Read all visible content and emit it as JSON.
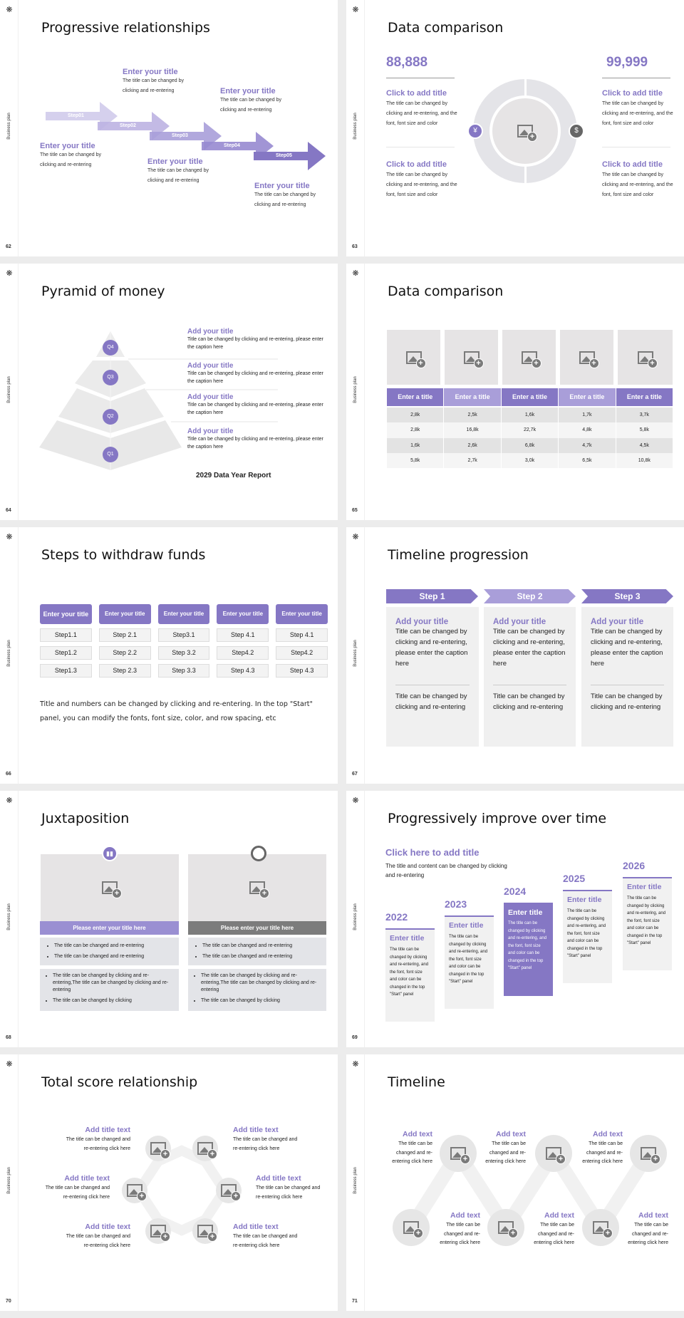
{
  "common": {
    "side_label": "Business plan",
    "logo_glyph": "❋"
  },
  "colors": {
    "accent": "#8577c4",
    "light_accent": "#a99ed9",
    "gray": "#7a7a7a",
    "panel": "#f0f0f0"
  },
  "s62": {
    "page": "62",
    "title": "Progressive relationships",
    "steps": [
      "Step01",
      "Step02",
      "Step03",
      "Step04",
      "Step05"
    ],
    "items": [
      {
        "title": "Enter your title",
        "body": "The title can be changed by clicking and re-entering"
      },
      {
        "title": "Enter your title",
        "body": "The title can be changed by clicking and re-entering"
      },
      {
        "title": "Enter your title",
        "body": "The title can be changed by clicking and re-entering"
      },
      {
        "title": "Enter your title",
        "body": "The title can be changed by clicking and re-entering"
      },
      {
        "title": "Enter your title",
        "body": "The title can be changed by clicking and re-entering"
      }
    ]
  },
  "s63": {
    "page": "63",
    "title": "Data comparison",
    "left_value": "88,888",
    "right_value": "99,999",
    "blocks": [
      {
        "title": "Click to add title",
        "body": "The title can be changed by clicking and re-entering, and the font, font size and color"
      },
      {
        "title": "Click to add title",
        "body": "The title can be changed by clicking and re-entering, and the font, font size and color"
      },
      {
        "title": "Click to add title",
        "body": "The title can be changed by clicking and re-entering, and the font, font size and color"
      },
      {
        "title": "Click to add title",
        "body": "The title can be changed by clicking and re-entering, and the font, font size and color"
      }
    ]
  },
  "s64": {
    "page": "64",
    "title": "Pyramid of money",
    "levels": [
      "Q4",
      "Q3",
      "Q2",
      "Q1"
    ],
    "items": [
      {
        "title": "Add your title",
        "body": "Title can be changed by clicking and re-entering, please enter the caption here"
      },
      {
        "title": "Add your title",
        "body": "Title can be changed by clicking and re-entering, please enter the caption here"
      },
      {
        "title": "Add your title",
        "body": "Title can be changed by clicking and re-entering, please enter the caption here"
      },
      {
        "title": "Add your title",
        "body": "Title can be changed by clicking and re-entering, please enter the caption here"
      }
    ],
    "report": "2029 Data Year Report"
  },
  "s65": {
    "page": "65",
    "title": "Data comparison",
    "headers": [
      "Enter a title",
      "Enter a title",
      "Enter a title",
      "Enter a title",
      "Enter a title"
    ],
    "rows": [
      [
        "2,8k",
        "2,5k",
        "1,6k",
        "1,7k",
        "3,7k"
      ],
      [
        "2,8k",
        "16,8k",
        "22,7k",
        "4,8k",
        "5,8k"
      ],
      [
        "1,6k",
        "2,6k",
        "6,8k",
        "4,7k",
        "4,5k"
      ],
      [
        "5,8k",
        "2,7k",
        "3,0k",
        "6,5k",
        "10,8k"
      ]
    ]
  },
  "s66": {
    "page": "66",
    "title": "Steps to withdraw funds",
    "columns": [
      {
        "header": "Enter your title",
        "steps": [
          "Step1.1",
          "Step1.2",
          "Step1.3"
        ]
      },
      {
        "header": "Enter your title",
        "steps": [
          "Step 2.1",
          "Step 2.2",
          "Step 2.3"
        ]
      },
      {
        "header": "Enter your title",
        "steps": [
          "Step3.1",
          "Step 3.2",
          "Step 3.3"
        ]
      },
      {
        "header": "Enter your title",
        "steps": [
          "Step 4.1",
          "Step4.2",
          "Step 4.3"
        ]
      },
      {
        "header": "Enter your title",
        "steps": [
          "Step 4.1",
          "Step4.2",
          "Step 4.3"
        ]
      }
    ],
    "note": "Title and numbers can be changed by clicking and re-entering. In the top \"Start\" panel, you can modify the fonts, font size, color, and row spacing, etc"
  },
  "s67": {
    "page": "67",
    "title": "Timeline progression",
    "steps": [
      {
        "label": "Step 1",
        "title": "Add your title",
        "body": "Title can be changed by clicking and re-entering, please enter the caption here",
        "body2": "Title can be changed by clicking and re-entering"
      },
      {
        "label": "Step 2",
        "title": "Add your title",
        "body": "Title can be changed by clicking and re-entering, please enter the caption here",
        "body2": "Title can be changed by clicking and re-entering"
      },
      {
        "label": "Step 3",
        "title": "Add your title",
        "body": "Title can be changed by clicking and re-entering, please enter the caption here",
        "body2": "Title can be changed by clicking and re-entering"
      }
    ]
  },
  "s68": {
    "page": "68",
    "title": "Juxtaposition",
    "panels": [
      {
        "icon": "bar-chart-icon",
        "heading": "Please enter your title here",
        "bullets_a": [
          "The title can be changed and re-entering",
          "The title can be changed and re-entering"
        ],
        "bullets_b": [
          "The title can be changed by clicking and re-entering,The title can be changed by clicking and re-entering",
          "The title can be changed by clicking"
        ]
      },
      {
        "icon": "pie-chart-icon",
        "heading": "Please enter your title here",
        "bullets_a": [
          "The title can be changed and re-entering",
          "The title can be changed and re-entering"
        ],
        "bullets_b": [
          "The title can be changed by clicking and re-entering,The title can be changed by clicking and re-entering",
          "The title can be changed by clicking"
        ]
      }
    ]
  },
  "s69": {
    "page": "69",
    "title": "Progressively improve over time",
    "head": "Click here to add title",
    "sub": "The title and content can be changed by clicking and re-entering",
    "years": [
      {
        "year": "2022",
        "title": "Enter title",
        "body": "The title can be changed by clicking and re-entering, and the font, font size and color can be changed in the top \"Start\" panel"
      },
      {
        "year": "2023",
        "title": "Enter title",
        "body": "The title can be changed by clicking and re-entering, and the font, font size and color can be changed in the top \"Start\" panel"
      },
      {
        "year": "2024",
        "title": "Enter title",
        "body": "The title can be changed by clicking and re-entering, and the font, font size and color can be changed in the top \"Start\" panel"
      },
      {
        "year": "2025",
        "title": "Enter title",
        "body": "The title can be changed by clicking and re-entering, and the font, font size and color can be changed in the top \"Start\" panel"
      },
      {
        "year": "2026",
        "title": "Enter title",
        "body": "The title can be changed by clicking and re-entering, and the font, font size and color can be changed in the top \"Start\" panel"
      }
    ]
  },
  "s70": {
    "page": "70",
    "title": "Total score relationship",
    "items": [
      {
        "title": "Add title text",
        "body": "The title can be changed and re-entering click here"
      },
      {
        "title": "Add title text",
        "body": "The title can be changed and re-entering click here"
      },
      {
        "title": "Add title text",
        "body": "The title can be changed and re-entering click here"
      },
      {
        "title": "Add title text",
        "body": "The title can be changed and re-entering click here"
      },
      {
        "title": "Add title text",
        "body": "The title can be changed and re-entering click here"
      },
      {
        "title": "Add title text",
        "body": "The title can be changed and re-entering click here"
      }
    ]
  },
  "s71": {
    "page": "71",
    "title": "Timeline",
    "items": [
      {
        "title": "Add text",
        "body": "The title can be changed and re-entering click here"
      },
      {
        "title": "Add text",
        "body": "The title can be changed and re-entering click here"
      },
      {
        "title": "Add text",
        "body": "The title can be changed and re-entering click here"
      },
      {
        "title": "Add text",
        "body": "The title can be changed and re-entering click here"
      },
      {
        "title": "Add text",
        "body": "The title can be changed and re-entering click here"
      },
      {
        "title": "Add text",
        "body": "The title can be changed and re-entering click here"
      }
    ]
  }
}
